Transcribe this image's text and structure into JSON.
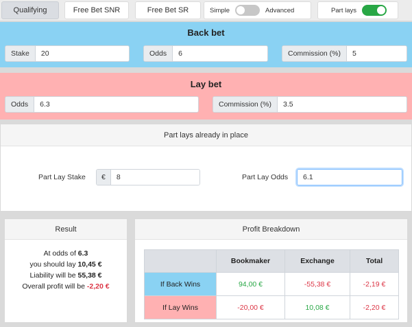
{
  "tabs": [
    {
      "label": "Qualifying",
      "active": true
    },
    {
      "label": "Free Bet SNR",
      "active": false
    },
    {
      "label": "Free Bet SR",
      "active": false
    }
  ],
  "mode_toggle": {
    "left_label": "Simple",
    "right_label": "Advanced",
    "on": false
  },
  "part_lays_toggle": {
    "label": "Part lays",
    "on": true
  },
  "back_bet": {
    "title": "Back bet",
    "stake_label": "Stake",
    "stake_value": "20",
    "odds_label": "Odds",
    "odds_value": "6",
    "commission_label": "Commission (%)",
    "commission_value": "5"
  },
  "lay_bet": {
    "title": "Lay bet",
    "odds_label": "Odds",
    "odds_value": "6.3",
    "commission_label": "Commission (%)",
    "commission_value": "3.5"
  },
  "part_lays": {
    "title": "Part lays already in place",
    "stake_label": "Part Lay Stake",
    "currency_symbol": "€",
    "stake_value": "8",
    "odds_label": "Part Lay Odds",
    "odds_value": "6.1"
  },
  "result": {
    "title": "Result",
    "line1_prefix": "At odds of ",
    "line1_value": "6.3",
    "line2_prefix": "you should lay ",
    "line2_value": "10,45 €",
    "line3_prefix": "Liability will be ",
    "line3_value": "55,38 €",
    "line4_prefix": "Overall profit will be ",
    "line4_value": "-2,20 €"
  },
  "breakdown": {
    "title": "Profit Breakdown",
    "headers": [
      "",
      "Bookmaker",
      "Exchange",
      "Total"
    ],
    "rows": [
      {
        "label": "If Back Wins",
        "bookmaker": "94,00 €",
        "exchange": "-55,38 €",
        "total": "-2,19 €"
      },
      {
        "label": "If Lay Wins",
        "bookmaker": "-20,00 €",
        "exchange": "10,08 €",
        "total": "-2,20 €"
      }
    ]
  },
  "colors": {
    "back_bg": "#8ad2f3",
    "lay_bg": "#ffb1b2",
    "toggle_on": "#28a745",
    "negative": "#dc3545",
    "positive": "#28a745"
  }
}
